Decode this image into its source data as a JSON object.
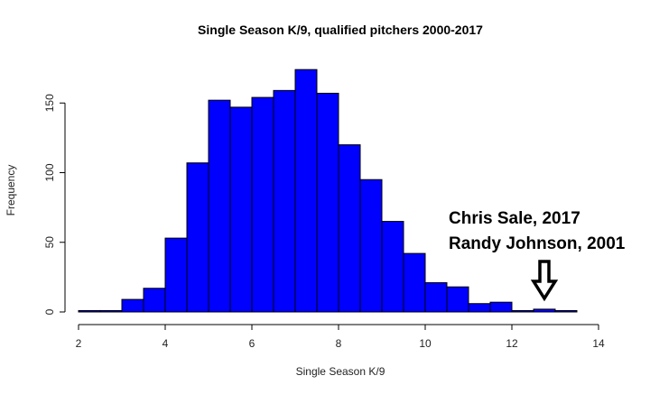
{
  "chart_data": {
    "type": "histogram",
    "title": "Single Season K/9, qualified pitchers 2000-2017",
    "xlabel": "Single Season K/9",
    "ylabel": "Frequency",
    "xlim": [
      2,
      14
    ],
    "ylim": [
      0,
      180
    ],
    "xticks": [
      2,
      4,
      6,
      8,
      10,
      12,
      14
    ],
    "yticks": [
      0,
      50,
      100,
      150
    ],
    "bin_width": 0.5,
    "bins": [
      {
        "x0": 2.0,
        "x1": 2.5,
        "count": 1
      },
      {
        "x0": 2.5,
        "x1": 3.0,
        "count": 1
      },
      {
        "x0": 3.0,
        "x1": 3.5,
        "count": 9
      },
      {
        "x0": 3.5,
        "x1": 4.0,
        "count": 17
      },
      {
        "x0": 4.0,
        "x1": 4.5,
        "count": 53
      },
      {
        "x0": 4.5,
        "x1": 5.0,
        "count": 107
      },
      {
        "x0": 5.0,
        "x1": 5.5,
        "count": 152
      },
      {
        "x0": 5.5,
        "x1": 6.0,
        "count": 147
      },
      {
        "x0": 6.0,
        "x1": 6.5,
        "count": 154
      },
      {
        "x0": 6.5,
        "x1": 7.0,
        "count": 159
      },
      {
        "x0": 7.0,
        "x1": 7.5,
        "count": 174
      },
      {
        "x0": 7.5,
        "x1": 8.0,
        "count": 157
      },
      {
        "x0": 8.0,
        "x1": 8.5,
        "count": 120
      },
      {
        "x0": 8.5,
        "x1": 9.0,
        "count": 95
      },
      {
        "x0": 9.0,
        "x1": 9.5,
        "count": 65
      },
      {
        "x0": 9.5,
        "x1": 10.0,
        "count": 42
      },
      {
        "x0": 10.0,
        "x1": 10.5,
        "count": 21
      },
      {
        "x0": 10.5,
        "x1": 11.0,
        "count": 18
      },
      {
        "x0": 11.0,
        "x1": 11.5,
        "count": 6
      },
      {
        "x0": 11.5,
        "x1": 12.0,
        "count": 7
      },
      {
        "x0": 12.0,
        "x1": 12.5,
        "count": 1
      },
      {
        "x0": 12.5,
        "x1": 13.0,
        "count": 2
      },
      {
        "x0": 13.0,
        "x1": 13.5,
        "count": 1
      }
    ],
    "bar_color": "#0000ff",
    "bar_border_color": "#000000",
    "grid": false,
    "annotation": {
      "lines": [
        "Chris Sale, 2017",
        "Randy Johnson, 2001"
      ],
      "points_to_x": 12.75,
      "arrow": "down"
    }
  }
}
